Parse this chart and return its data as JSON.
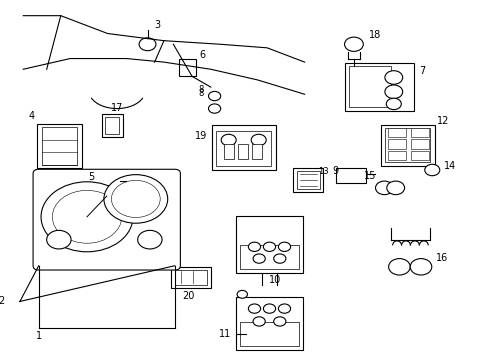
{
  "bg_color": "#ffffff",
  "line_color": "#000000",
  "figsize": [
    4.89,
    3.6
  ],
  "dpi": 100
}
